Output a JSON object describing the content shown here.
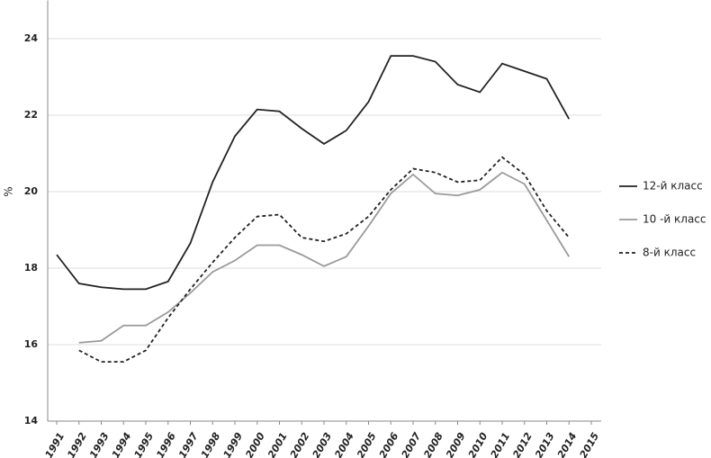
{
  "chart_data": {
    "type": "line",
    "y_label": "%",
    "categories": [
      "1991",
      "1992",
      "1993",
      "1994",
      "1995",
      "1996",
      "1997",
      "1998",
      "1999",
      "2000",
      "2001",
      "2002",
      "2003",
      "2004",
      "2005",
      "2006",
      "2007",
      "2008",
      "2009",
      "2010",
      "2011",
      "2012",
      "2013",
      "2014",
      "2015"
    ],
    "series": [
      {
        "name": "12-й класс",
        "color": "#222222",
        "dashed": false,
        "values": [
          18.35,
          17.6,
          17.5,
          17.45,
          17.45,
          17.65,
          18.65,
          20.25,
          21.45,
          22.15,
          22.1,
          21.65,
          21.25,
          21.6,
          22.35,
          23.55,
          23.55,
          23.4,
          22.8,
          22.6,
          23.35,
          23.15,
          22.95,
          21.9,
          null
        ]
      },
      {
        "name": "10 -й класс",
        "color": "#9a9a9a",
        "dashed": false,
        "values": [
          null,
          16.05,
          16.1,
          16.5,
          16.5,
          16.85,
          17.35,
          17.9,
          18.2,
          18.6,
          18.6,
          18.35,
          18.05,
          18.3,
          19.1,
          19.95,
          20.45,
          19.95,
          19.9,
          20.05,
          20.5,
          20.2,
          19.25,
          18.3,
          null
        ]
      },
      {
        "name": "8-й класс",
        "color": "#222222",
        "dashed": true,
        "values": [
          null,
          15.85,
          15.55,
          15.55,
          15.85,
          16.7,
          17.45,
          18.15,
          18.8,
          19.35,
          19.4,
          18.8,
          18.7,
          18.9,
          19.35,
          20.05,
          20.6,
          20.5,
          20.25,
          20.3,
          20.9,
          20.45,
          19.5,
          18.8,
          null
        ]
      }
    ],
    "ylim": [
      14,
      25
    ],
    "yticks": [
      14,
      16,
      18,
      20,
      22,
      24
    ],
    "grid": true,
    "legend": "right"
  }
}
